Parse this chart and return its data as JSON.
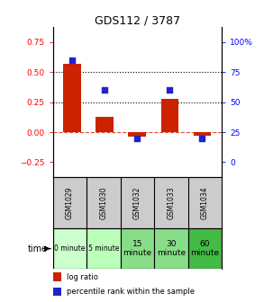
{
  "title": "GDS112 / 3787",
  "samples": [
    "GSM1029",
    "GSM1030",
    "GSM1032",
    "GSM1033",
    "GSM1034"
  ],
  "log_ratio": [
    0.57,
    0.13,
    -0.04,
    0.28,
    -0.03
  ],
  "percentile_rank": [
    85,
    60,
    20,
    60,
    20
  ],
  "time_labels": [
    "0 minute",
    "5 minute",
    "15\nminute",
    "30\nminute",
    "60\nminute"
  ],
  "time_colors": [
    "#ccffcc",
    "#bbffbb",
    "#88dd88",
    "#88dd88",
    "#44bb44"
  ],
  "bar_color": "#cc2200",
  "dot_color": "#2222cc",
  "left_ylim": [
    -0.375,
    0.875
  ],
  "right_ylim": [
    -12.5,
    112.5
  ],
  "left_yticks": [
    -0.25,
    0,
    0.25,
    0.5,
    0.75
  ],
  "right_yticks": [
    0,
    25,
    50,
    75,
    100
  ],
  "right_yticklabels": [
    "0",
    "25",
    "50",
    "75",
    "100%"
  ],
  "hline_y": [
    0.25,
    0.5
  ],
  "zero_line_y": 0,
  "bg_color": "#ffffff",
  "plot_bg": "#ffffff",
  "sample_row_color": "#cccccc",
  "legend_bar_label": "log ratio",
  "legend_dot_label": "percentile rank within the sample",
  "time_label": "time"
}
